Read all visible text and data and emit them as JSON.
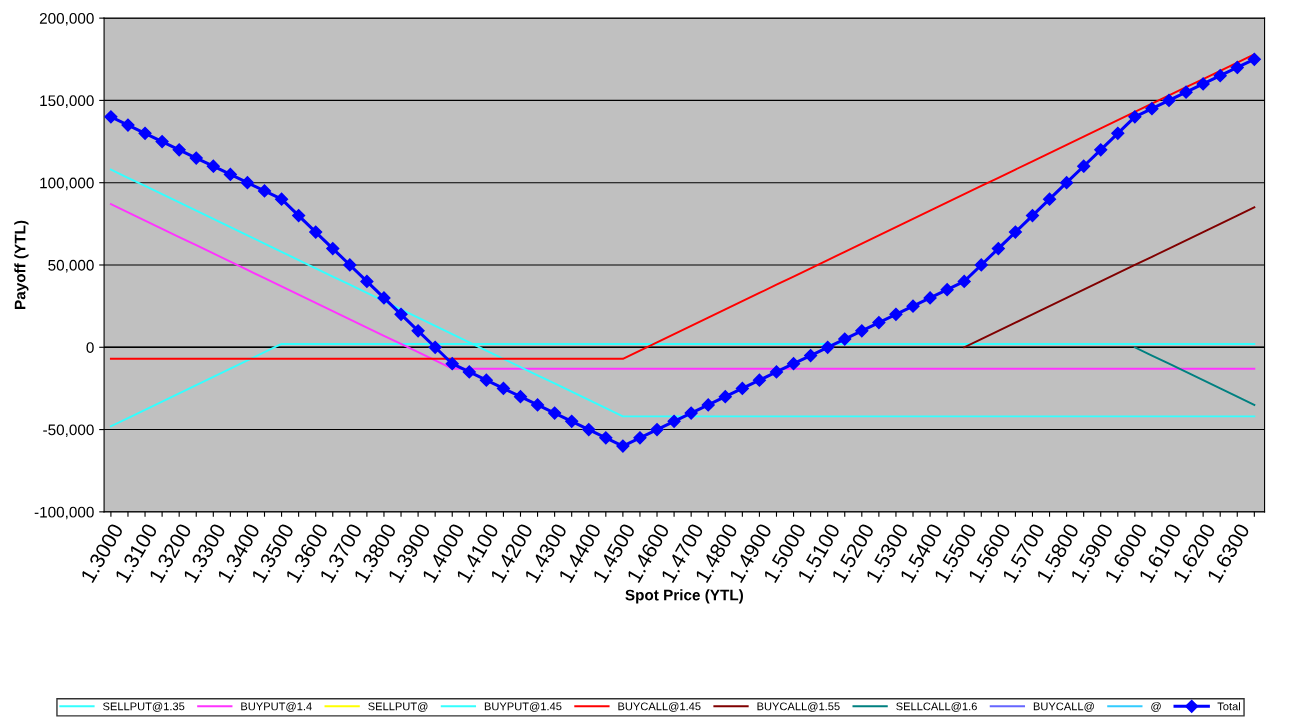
{
  "chart_data": {
    "type": "line",
    "xlabel": "Spot Price (YTL)",
    "ylabel": "Payoff (YTL)",
    "categories": [
      "1.3000",
      null,
      "1.3100",
      null,
      "1.3200",
      null,
      "1.3300",
      null,
      "1.3400",
      null,
      "1.3500",
      null,
      "1.3600",
      null,
      "1.3700",
      null,
      "1.3800",
      null,
      "1.3900",
      null,
      "1.4000",
      null,
      "1.4100",
      null,
      "1.4200",
      null,
      "1.4300",
      null,
      "1.4400",
      null,
      "1.4500",
      null,
      "1.4600",
      null,
      "1.4700",
      null,
      "1.4800",
      null,
      "1.4900",
      null,
      "1.5000",
      null,
      "1.5100",
      null,
      "1.5200",
      null,
      "1.5300",
      null,
      "1.5400",
      null,
      "1.5500",
      null,
      "1.5600",
      null,
      "1.5700",
      null,
      "1.5800",
      null,
      "1.5900",
      null,
      "1.6000",
      null,
      "1.6100",
      null,
      "1.6200",
      null,
      "1.6300",
      null
    ],
    "ylim": [
      -100000,
      200000
    ],
    "yticks": [
      {
        "value": -100000,
        "label": "-100,000"
      },
      {
        "value": -50000,
        "label": "-50,000"
      },
      {
        "value": 0,
        "label": "0"
      },
      {
        "value": 50000,
        "label": "50,000"
      },
      {
        "value": 100000,
        "label": "100,000"
      },
      {
        "value": 150000,
        "label": "150,000"
      },
      {
        "value": 200000,
        "label": "200,000"
      }
    ],
    "grid": "y",
    "legend": "bottom",
    "series": [
      {
        "name": "SELLPUT@1.35",
        "color": "#33ffff",
        "values": [
          -48000,
          -43000,
          -38000,
          -33000,
          -28000,
          -23000,
          -18000,
          -13000,
          -8000,
          -3000,
          2000,
          2000,
          2000,
          2000,
          2000,
          2000,
          2000,
          2000,
          2000,
          2000,
          2000,
          2000,
          2000,
          2000,
          2000,
          2000,
          2000,
          2000,
          2000,
          2000,
          2000,
          2000,
          2000,
          2000,
          2000,
          2000,
          2000,
          2000,
          2000,
          2000,
          2000,
          2000,
          2000,
          2000,
          2000,
          2000,
          2000,
          2000,
          2000,
          2000,
          2000,
          2000,
          2000,
          2000,
          2000,
          2000,
          2000,
          2000,
          2000,
          2000,
          2000,
          2000,
          2000,
          2000,
          2000,
          2000,
          2000,
          2000
        ]
      },
      {
        "name": "BUYPUT@1.4",
        "color": "#ff33ff",
        "values": [
          87000,
          82000,
          77000,
          72000,
          67000,
          62000,
          57000,
          52000,
          47000,
          42000,
          37000,
          32000,
          27000,
          22000,
          17000,
          12000,
          7000,
          2000,
          -3000,
          -8000,
          -13000,
          -13000,
          -13000,
          -13000,
          -13000,
          -13000,
          -13000,
          -13000,
          -13000,
          -13000,
          -13000,
          -13000,
          -13000,
          -13000,
          -13000,
          -13000,
          -13000,
          -13000,
          -13000,
          -13000,
          -13000,
          -13000,
          -13000,
          -13000,
          -13000,
          -13000,
          -13000,
          -13000,
          -13000,
          -13000,
          -13000,
          -13000,
          -13000,
          -13000,
          -13000,
          -13000,
          -13000,
          -13000,
          -13000,
          -13000,
          -13000,
          -13000,
          -13000,
          -13000,
          -13000,
          -13000,
          -13000,
          -13000
        ]
      },
      {
        "name": "SELLPUT@",
        "color": "#ffff00",
        "values": [
          null,
          null,
          null,
          null,
          null,
          null,
          null,
          null,
          null,
          null,
          null,
          null,
          null,
          null,
          null,
          null,
          null,
          null,
          null,
          null,
          null,
          null,
          null,
          null,
          null,
          null,
          null,
          null,
          null,
          null,
          null,
          null,
          null,
          null,
          null,
          null,
          null,
          null,
          null,
          null,
          null,
          null,
          null,
          null,
          null,
          null,
          null,
          null,
          null,
          null,
          null,
          null,
          null,
          null,
          null,
          null,
          null,
          null,
          null,
          null,
          null,
          null,
          null,
          null,
          null,
          null,
          null,
          null
        ]
      },
      {
        "name": "BUYPUT@1.45",
        "color": "#33ffff",
        "values": [
          108000,
          103000,
          98000,
          93000,
          88000,
          83000,
          78000,
          73000,
          68000,
          63000,
          58000,
          53000,
          48000,
          43000,
          38000,
          33000,
          28000,
          23000,
          18000,
          13000,
          8000,
          3000,
          -2000,
          -7000,
          -12000,
          -17000,
          -22000,
          -27000,
          -32000,
          -37000,
          -42000,
          -42000,
          -42000,
          -42000,
          -42000,
          -42000,
          -42000,
          -42000,
          -42000,
          -42000,
          -42000,
          -42000,
          -42000,
          -42000,
          -42000,
          -42000,
          -42000,
          -42000,
          -42000,
          -42000,
          -42000,
          -42000,
          -42000,
          -42000,
          -42000,
          -42000,
          -42000,
          -42000,
          -42000,
          -42000,
          -42000,
          -42000,
          -42000,
          -42000,
          -42000,
          -42000,
          -42000,
          -42000
        ]
      },
      {
        "name": "BUYCALL@1.45",
        "color": "#ff0000",
        "values": [
          -7000,
          -7000,
          -7000,
          -7000,
          -7000,
          -7000,
          -7000,
          -7000,
          -7000,
          -7000,
          -7000,
          -7000,
          -7000,
          -7000,
          -7000,
          -7000,
          -7000,
          -7000,
          -7000,
          -7000,
          -7000,
          -7000,
          -7000,
          -7000,
          -7000,
          -7000,
          -7000,
          -7000,
          -7000,
          -7000,
          -7000,
          -2000,
          3000,
          8000,
          13000,
          18000,
          23000,
          28000,
          33000,
          38000,
          43000,
          48000,
          53000,
          58000,
          63000,
          68000,
          73000,
          78000,
          83000,
          88000,
          93000,
          98000,
          103000,
          108000,
          113000,
          118000,
          123000,
          128000,
          133000,
          138000,
          143000,
          148000,
          153000,
          158000,
          163000,
          168000,
          173000,
          178000
        ]
      },
      {
        "name": "BUYCALL@1.55",
        "color": "#800000",
        "values": [
          null,
          null,
          null,
          null,
          null,
          null,
          null,
          null,
          null,
          null,
          null,
          null,
          null,
          null,
          null,
          null,
          null,
          null,
          null,
          null,
          null,
          null,
          null,
          null,
          null,
          null,
          null,
          null,
          null,
          null,
          null,
          null,
          null,
          null,
          null,
          null,
          null,
          null,
          null,
          null,
          null,
          null,
          null,
          null,
          null,
          null,
          null,
          null,
          null,
          null,
          0,
          5000,
          10000,
          15000,
          20000,
          25000,
          30000,
          35000,
          40000,
          45000,
          50000,
          55000,
          60000,
          65000,
          70000,
          75000,
          80000,
          85000
        ]
      },
      {
        "name": "SELLCALL@1.6",
        "color": "#008080",
        "values": [
          null,
          null,
          null,
          null,
          null,
          null,
          null,
          null,
          null,
          null,
          null,
          null,
          null,
          null,
          null,
          null,
          null,
          null,
          null,
          null,
          null,
          null,
          null,
          null,
          null,
          null,
          null,
          null,
          null,
          null,
          null,
          null,
          null,
          null,
          null,
          null,
          null,
          null,
          null,
          null,
          null,
          null,
          null,
          null,
          null,
          null,
          null,
          null,
          null,
          null,
          null,
          null,
          null,
          null,
          null,
          null,
          null,
          null,
          null,
          null,
          0,
          -5000,
          -10000,
          -15000,
          -20000,
          -25000,
          -30000,
          -35000
        ]
      },
      {
        "name": "BUYCALL@",
        "color": "#6666ff",
        "values": [
          null,
          null,
          null,
          null,
          null,
          null,
          null,
          null,
          null,
          null,
          null,
          null,
          null,
          null,
          null,
          null,
          null,
          null,
          null,
          null,
          null,
          null,
          null,
          null,
          null,
          null,
          null,
          null,
          null,
          null,
          null,
          null,
          null,
          null,
          null,
          null,
          null,
          null,
          null,
          null,
          null,
          null,
          null,
          null,
          null,
          null,
          null,
          null,
          null,
          null,
          null,
          null,
          null,
          null,
          null,
          null,
          null,
          null,
          null,
          null,
          null,
          null,
          null,
          null,
          null,
          null,
          null,
          null
        ]
      },
      {
        "name": "@",
        "color": "#33ccff",
        "values": [
          null,
          null,
          null,
          null,
          null,
          null,
          null,
          null,
          null,
          null,
          null,
          null,
          null,
          null,
          null,
          null,
          null,
          null,
          null,
          null,
          null,
          null,
          null,
          null,
          null,
          null,
          null,
          null,
          null,
          null,
          null,
          null,
          null,
          null,
          null,
          null,
          null,
          null,
          null,
          null,
          null,
          null,
          null,
          null,
          null,
          null,
          null,
          null,
          null,
          null,
          null,
          null,
          null,
          null,
          null,
          null,
          null,
          null,
          null,
          null,
          null,
          null,
          null,
          null,
          null,
          null,
          null,
          null
        ]
      },
      {
        "name": "Total",
        "color": "#0000ff",
        "marker": "diamond",
        "values": [
          140000,
          135000,
          130000,
          125000,
          120000,
          115000,
          110000,
          105000,
          100000,
          95000,
          90000,
          80000,
          70000,
          60000,
          50000,
          40000,
          30000,
          20000,
          10000,
          0,
          -10000,
          -15000,
          -20000,
          -25000,
          -30000,
          -35000,
          -40000,
          -45000,
          -50000,
          -55000,
          -60000,
          -55000,
          -50000,
          -45000,
          -40000,
          -35000,
          -30000,
          -25000,
          -20000,
          -15000,
          -10000,
          -5000,
          0,
          5000,
          10000,
          15000,
          20000,
          25000,
          30000,
          35000,
          40000,
          50000,
          60000,
          70000,
          80000,
          90000,
          100000,
          110000,
          120000,
          130000,
          140000,
          145000,
          150000,
          155000,
          160000,
          165000,
          170000,
          175000
        ]
      }
    ]
  }
}
